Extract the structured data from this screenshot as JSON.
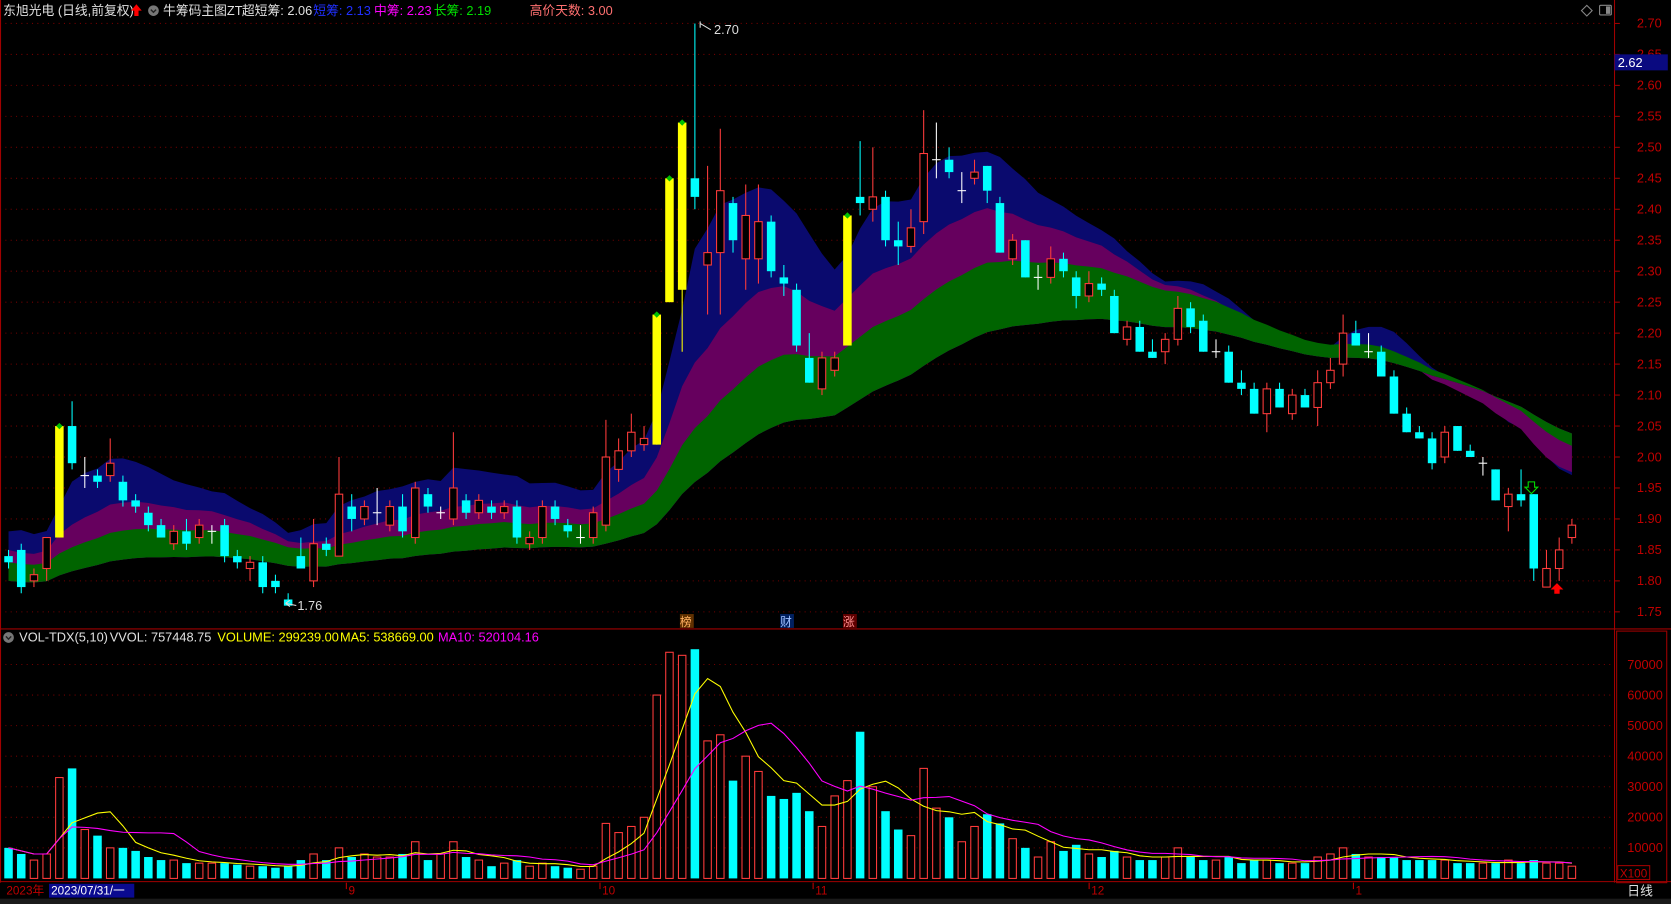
{
  "header": {
    "stock": "东旭光电 (日线,前复权)",
    "indicator": "牛筹码主图ZT",
    "ultra_short": "超短筹: 2.06",
    "short": "短筹: 2.13",
    "mid": "中筹: 2.23",
    "long": "长筹: 2.19",
    "high_days": "高价天数: 3.00"
  },
  "volume_header": {
    "name": "VOL-TDX(5,10)",
    "vvol": "VVOL: 757448.75",
    "volume": "VOLUME: 299239.00",
    "ma5": "MA5: 538669.00",
    "ma10": "MA10: 520104.16"
  },
  "price_axis": [
    "2.70",
    "2.65",
    "2.60",
    "2.55",
    "2.50",
    "2.45",
    "2.40",
    "2.35",
    "2.30",
    "2.25",
    "2.20",
    "2.15",
    "2.10",
    "2.05",
    "2.00",
    "1.95",
    "1.90",
    "1.85",
    "1.80",
    "1.75"
  ],
  "current_price": "2.62",
  "volume_axis": [
    "70000",
    "60000",
    "50000",
    "40000",
    "30000",
    "20000",
    "10000"
  ],
  "volume_unit": "X100",
  "annotations": {
    "high": "2.70",
    "low": "1.76",
    "tags": [
      "榜",
      "财",
      "涨"
    ]
  },
  "date_axis": {
    "year": "2023年",
    "cursor_date": "2023/07/31/一",
    "months": [
      "9",
      "10",
      "11",
      "12",
      "1"
    ]
  },
  "period_label": "日线",
  "colors": {
    "up": "#ff3b3b",
    "down": "#00ffff",
    "limit_up": "#ffff00",
    "band_navy": "#0a0a6e",
    "band_purple": "#66005e",
    "band_green": "#006400",
    "ma5": "#ffff00",
    "ma10": "#ff00ff",
    "axis": "#c00000"
  },
  "chart_data": {
    "type": "candlestick",
    "ylim": [
      1.75,
      2.7
    ],
    "volume_ylim": [
      0,
      70000
    ],
    "candles": [
      [
        1.84,
        1.85,
        1.82,
        1.83
      ],
      [
        1.85,
        1.86,
        1.78,
        1.79
      ],
      [
        1.8,
        1.82,
        1.79,
        1.81
      ],
      [
        1.82,
        1.87,
        1.8,
        1.87
      ],
      [
        1.87,
        2.05,
        1.87,
        2.05
      ],
      [
        2.05,
        2.09,
        1.98,
        1.99
      ],
      [
        1.97,
        2.0,
        1.95,
        1.97
      ],
      [
        1.97,
        1.98,
        1.95,
        1.96
      ],
      [
        1.97,
        2.03,
        1.96,
        1.99
      ],
      [
        1.96,
        1.97,
        1.92,
        1.93
      ],
      [
        1.93,
        1.94,
        1.91,
        1.92
      ],
      [
        1.91,
        1.92,
        1.88,
        1.89
      ],
      [
        1.89,
        1.9,
        1.87,
        1.87
      ],
      [
        1.86,
        1.89,
        1.85,
        1.88
      ],
      [
        1.88,
        1.9,
        1.85,
        1.86
      ],
      [
        1.87,
        1.9,
        1.86,
        1.89
      ],
      [
        1.88,
        1.89,
        1.86,
        1.88
      ],
      [
        1.89,
        1.9,
        1.83,
        1.84
      ],
      [
        1.84,
        1.85,
        1.82,
        1.83
      ],
      [
        1.82,
        1.84,
        1.8,
        1.83
      ],
      [
        1.83,
        1.84,
        1.78,
        1.79
      ],
      [
        1.8,
        1.81,
        1.78,
        1.79
      ],
      [
        1.77,
        1.78,
        1.76,
        1.76
      ],
      [
        1.84,
        1.87,
        1.82,
        1.82
      ],
      [
        1.8,
        1.9,
        1.79,
        1.86
      ],
      [
        1.86,
        1.87,
        1.84,
        1.85
      ],
      [
        1.84,
        2.0,
        1.84,
        1.94
      ],
      [
        1.92,
        1.94,
        1.88,
        1.9
      ],
      [
        1.9,
        1.93,
        1.89,
        1.92
      ],
      [
        1.91,
        1.95,
        1.89,
        1.91
      ],
      [
        1.89,
        1.93,
        1.88,
        1.92
      ],
      [
        1.92,
        1.94,
        1.87,
        1.88
      ],
      [
        1.87,
        1.96,
        1.86,
        1.95
      ],
      [
        1.94,
        1.95,
        1.91,
        1.92
      ],
      [
        1.91,
        1.92,
        1.9,
        1.91
      ],
      [
        1.9,
        2.04,
        1.89,
        1.95
      ],
      [
        1.93,
        1.94,
        1.9,
        1.91
      ],
      [
        1.91,
        1.94,
        1.9,
        1.93
      ],
      [
        1.92,
        1.93,
        1.9,
        1.91
      ],
      [
        1.91,
        1.93,
        1.9,
        1.92
      ],
      [
        1.92,
        1.93,
        1.86,
        1.87
      ],
      [
        1.86,
        1.88,
        1.85,
        1.87
      ],
      [
        1.87,
        1.93,
        1.86,
        1.92
      ],
      [
        1.92,
        1.93,
        1.89,
        1.9
      ],
      [
        1.89,
        1.9,
        1.87,
        1.88
      ],
      [
        1.87,
        1.89,
        1.86,
        1.87
      ],
      [
        1.87,
        1.92,
        1.86,
        1.91
      ],
      [
        1.89,
        2.06,
        1.88,
        2.0
      ],
      [
        1.98,
        2.03,
        1.96,
        2.01
      ],
      [
        2.01,
        2.07,
        2.0,
        2.04
      ],
      [
        2.02,
        2.05,
        2.01,
        2.03
      ],
      [
        2.02,
        2.23,
        2.02,
        2.23
      ],
      [
        2.25,
        2.45,
        2.25,
        2.45
      ],
      [
        2.27,
        2.54,
        2.17,
        2.54
      ],
      [
        2.45,
        2.7,
        2.4,
        2.42
      ],
      [
        2.31,
        2.47,
        2.23,
        2.33
      ],
      [
        2.33,
        2.53,
        2.23,
        2.43
      ],
      [
        2.41,
        2.42,
        2.33,
        2.35
      ],
      [
        2.32,
        2.44,
        2.27,
        2.39
      ],
      [
        2.32,
        2.44,
        2.28,
        2.38
      ],
      [
        2.38,
        2.39,
        2.29,
        2.3
      ],
      [
        2.29,
        2.31,
        2.26,
        2.28
      ],
      [
        2.27,
        2.28,
        2.17,
        2.18
      ],
      [
        2.16,
        2.2,
        2.12,
        2.12
      ],
      [
        2.11,
        2.17,
        2.1,
        2.16
      ],
      [
        2.14,
        2.17,
        2.13,
        2.16
      ],
      [
        2.18,
        2.39,
        2.18,
        2.39
      ],
      [
        2.42,
        2.51,
        2.39,
        2.41
      ],
      [
        2.4,
        2.5,
        2.38,
        2.42
      ],
      [
        2.42,
        2.43,
        2.34,
        2.35
      ],
      [
        2.35,
        2.38,
        2.31,
        2.34
      ],
      [
        2.34,
        2.4,
        2.33,
        2.37
      ],
      [
        2.38,
        2.56,
        2.36,
        2.49
      ],
      [
        2.48,
        2.54,
        2.45,
        2.48
      ],
      [
        2.48,
        2.5,
        2.45,
        2.46
      ],
      [
        2.43,
        2.46,
        2.41,
        2.43
      ],
      [
        2.45,
        2.48,
        2.44,
        2.46
      ],
      [
        2.47,
        2.47,
        2.41,
        2.43
      ],
      [
        2.41,
        2.42,
        2.33,
        2.33
      ],
      [
        2.32,
        2.36,
        2.31,
        2.35
      ],
      [
        2.35,
        2.35,
        2.29,
        2.29
      ],
      [
        2.29,
        2.31,
        2.27,
        2.29
      ],
      [
        2.29,
        2.34,
        2.28,
        2.32
      ],
      [
        2.32,
        2.33,
        2.29,
        2.3
      ],
      [
        2.29,
        2.3,
        2.24,
        2.26
      ],
      [
        2.26,
        2.3,
        2.25,
        2.28
      ],
      [
        2.28,
        2.29,
        2.26,
        2.27
      ],
      [
        2.26,
        2.27,
        2.2,
        2.2
      ],
      [
        2.19,
        2.22,
        2.18,
        2.21
      ],
      [
        2.21,
        2.22,
        2.17,
        2.17
      ],
      [
        2.17,
        2.19,
        2.16,
        2.16
      ],
      [
        2.17,
        2.2,
        2.15,
        2.19
      ],
      [
        2.19,
        2.26,
        2.18,
        2.24
      ],
      [
        2.24,
        2.25,
        2.2,
        2.21
      ],
      [
        2.22,
        2.23,
        2.17,
        2.17
      ],
      [
        2.17,
        2.19,
        2.16,
        2.17
      ],
      [
        2.17,
        2.18,
        2.12,
        2.12
      ],
      [
        2.12,
        2.14,
        2.1,
        2.11
      ],
      [
        2.11,
        2.12,
        2.07,
        2.07
      ],
      [
        2.07,
        2.12,
        2.04,
        2.11
      ],
      [
        2.11,
        2.12,
        2.08,
        2.08
      ],
      [
        2.07,
        2.11,
        2.06,
        2.1
      ],
      [
        2.1,
        2.11,
        2.08,
        2.08
      ],
      [
        2.08,
        2.14,
        2.05,
        2.12
      ],
      [
        2.12,
        2.16,
        2.11,
        2.14
      ],
      [
        2.15,
        2.23,
        2.13,
        2.2
      ],
      [
        2.2,
        2.22,
        2.18,
        2.18
      ],
      [
        2.17,
        2.2,
        2.16,
        2.17
      ],
      [
        2.17,
        2.18,
        2.13,
        2.13
      ],
      [
        2.13,
        2.14,
        2.07,
        2.07
      ],
      [
        2.07,
        2.08,
        2.04,
        2.04
      ],
      [
        2.04,
        2.05,
        2.03,
        2.03
      ],
      [
        2.03,
        2.04,
        1.98,
        1.99
      ],
      [
        2.0,
        2.05,
        1.99,
        2.04
      ],
      [
        2.05,
        2.05,
        2.01,
        2.01
      ],
      [
        2.01,
        2.02,
        2.0,
        2.0
      ],
      [
        1.99,
        2.0,
        1.97,
        1.99
      ],
      [
        1.98,
        1.98,
        1.93,
        1.93
      ],
      [
        1.92,
        1.95,
        1.88,
        1.94
      ],
      [
        1.94,
        1.98,
        1.92,
        1.93
      ],
      [
        1.94,
        1.94,
        1.8,
        1.82
      ],
      [
        1.79,
        1.85,
        1.79,
        1.82
      ],
      [
        1.82,
        1.87,
        1.8,
        1.85
      ],
      [
        1.87,
        1.9,
        1.86,
        1.89
      ]
    ],
    "limit_up_indices": [
      4,
      51,
      52,
      53,
      66
    ],
    "volumes": [
      10000,
      8000,
      6000,
      8000,
      33000,
      36000,
      16000,
      14000,
      10000,
      10000,
      9000,
      7000,
      6000,
      6000,
      5000,
      5000,
      5000,
      5000,
      4500,
      4000,
      4000,
      3500,
      4000,
      6000,
      8000,
      6000,
      10000,
      7000,
      8000,
      7000,
      7000,
      8000,
      12000,
      6000,
      8000,
      12000,
      7000,
      6000,
      4000,
      5000,
      6000,
      4000,
      5000,
      4000,
      3500,
      3000,
      4000,
      18000,
      15000,
      17000,
      20000,
      60000,
      74000,
      73000,
      75000,
      45000,
      47000,
      32000,
      40000,
      35000,
      27000,
      26000,
      28000,
      22000,
      17000,
      27000,
      32000,
      48000,
      30000,
      22000,
      16000,
      14000,
      36000,
      23000,
      20000,
      12000,
      17000,
      21000,
      18000,
      13000,
      10000,
      7000,
      12000,
      9000,
      11000,
      8000,
      7000,
      9000,
      7000,
      6000,
      6000,
      7000,
      10000,
      7000,
      6000,
      6000,
      7000,
      5000,
      6000,
      6000,
      5000,
      5000,
      5000,
      7000,
      8000,
      10000,
      8000,
      7000,
      7000,
      7000,
      6000,
      6000,
      6000,
      6000,
      5000,
      5000,
      5000,
      5000,
      6000,
      5000,
      6000,
      5000,
      5000,
      4000
    ]
  }
}
